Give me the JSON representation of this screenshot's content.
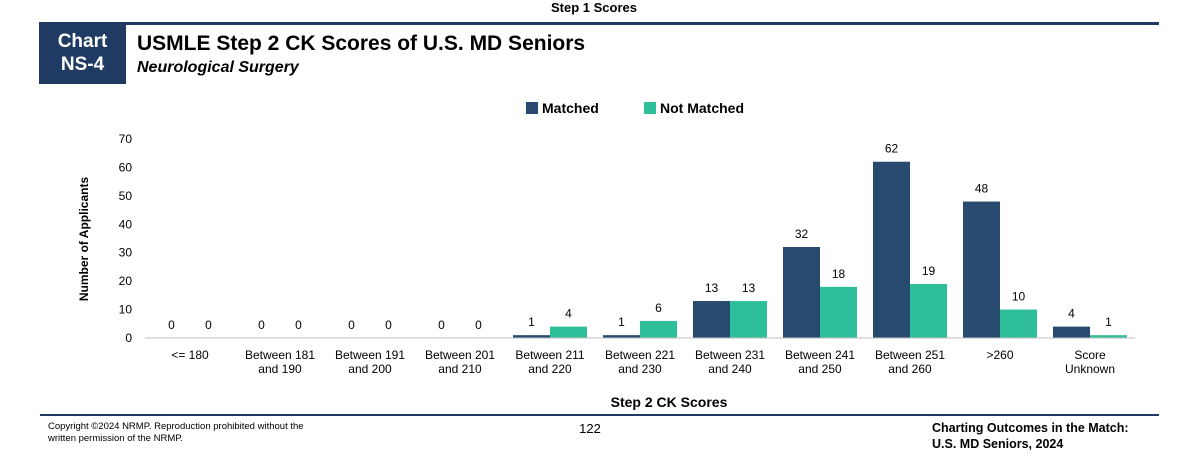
{
  "header": {
    "top_label": "Step 1 Scores",
    "badge_line1": "Chart",
    "badge_line2": "NS-4",
    "title": "USMLE Step 2 CK Scores of U.S. MD Seniors",
    "subtitle": "Neurological Surgery"
  },
  "footer": {
    "copyright_line1": "Copyright ©2024 NRMP. Reproduction prohibited without the",
    "copyright_line2": "written permission of the NRMP.",
    "page_number": "122",
    "right_line1": "Charting Outcomes in the Match:",
    "right_line2": "U.S. MD Seniors, 2024"
  },
  "colors": {
    "matched": "#274a6e",
    "not_matched": "#2ebf9a",
    "brand": "#1f3a63"
  },
  "chart_data": {
    "type": "bar",
    "title": "",
    "xlabel": "Step 2 CK Scores",
    "ylabel": "Number of Applicants",
    "ylim": [
      0,
      70
    ],
    "yticks": [
      0,
      10,
      20,
      30,
      40,
      50,
      60,
      70
    ],
    "legend_position": "top-center",
    "grid": false,
    "categories": [
      [
        "<= 180"
      ],
      [
        "Between 181",
        "and 190"
      ],
      [
        "Between 191",
        "and 200"
      ],
      [
        "Between 201",
        "and 210"
      ],
      [
        "Between 211",
        "and 220"
      ],
      [
        "Between 221",
        "and 230"
      ],
      [
        "Between 231",
        "and 240"
      ],
      [
        "Between 241",
        "and 250"
      ],
      [
        "Between 251",
        "and 260"
      ],
      [
        ">260"
      ],
      [
        "Score",
        "Unknown"
      ]
    ],
    "series": [
      {
        "name": "Matched",
        "values": [
          0,
          0,
          0,
          0,
          1,
          1,
          13,
          32,
          62,
          48,
          4
        ]
      },
      {
        "name": "Not Matched",
        "values": [
          0,
          0,
          0,
          0,
          4,
          6,
          13,
          18,
          19,
          10,
          1
        ]
      }
    ]
  }
}
